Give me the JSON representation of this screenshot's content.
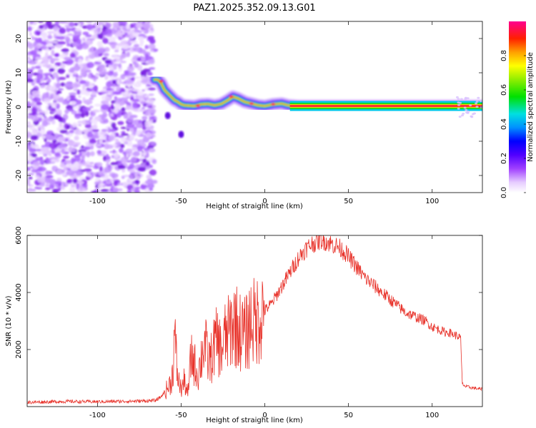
{
  "title": "PAZ1.2025.352.09.13.G01",
  "chart_data": [
    {
      "type": "heatmap",
      "name": "spectrogram",
      "xlabel": "Height of straight line (km)",
      "ylabel": "Frequency (Hz)",
      "xlim": [
        -142,
        130
      ],
      "ylim": [
        -25,
        25
      ],
      "xticks": [
        -100,
        -50,
        0,
        50,
        100
      ],
      "yticks": [
        -20,
        -10,
        0,
        10,
        20
      ],
      "noise_region": {
        "x_start": -142,
        "x_end": -66,
        "description_level": "low"
      },
      "signal_track": [
        [
          -66,
          8
        ],
        [
          -64,
          8
        ],
        [
          -62,
          7
        ],
        [
          -60,
          5
        ],
        [
          -58,
          4
        ],
        [
          -56,
          3
        ],
        [
          -54,
          2
        ],
        [
          -52,
          1.5
        ],
        [
          -50,
          0.8
        ],
        [
          -48,
          0.5
        ],
        [
          -45,
          0.4
        ],
        [
          -42,
          0.3
        ],
        [
          -38,
          0.8
        ],
        [
          -34,
          0.9
        ],
        [
          -30,
          0.5
        ],
        [
          -26,
          0.9
        ],
        [
          -22,
          2
        ],
        [
          -19,
          3
        ],
        [
          -16,
          2.5
        ],
        [
          -12,
          1.5
        ],
        [
          -8,
          1
        ],
        [
          -4,
          0.5
        ],
        [
          0,
          0.3
        ],
        [
          5,
          0.8
        ],
        [
          10,
          1
        ],
        [
          14,
          0.5
        ],
        [
          20,
          0.3
        ],
        [
          40,
          0.3
        ],
        [
          60,
          0.3
        ],
        [
          80,
          0.3
        ],
        [
          100,
          0.3
        ],
        [
          120,
          0.3
        ],
        [
          130,
          0.3
        ]
      ],
      "extra_blobs": [
        [
          -50,
          -8
        ],
        [
          -58,
          -2.5
        ]
      ],
      "colorbar": {
        "label": "Normalized spectral amplitude",
        "range": [
          0,
          1
        ],
        "ticks": [
          "0.0",
          "0.2",
          "0.4",
          "0.6",
          "0.8"
        ]
      }
    },
    {
      "type": "line",
      "name": "snr",
      "xlabel": "Height of straight line (km)",
      "ylabel": "SNR (10 * v/v)",
      "xlim": [
        -142,
        130
      ],
      "ylim": [
        0,
        6000
      ],
      "xticks": [
        -100,
        -50,
        0,
        50,
        100
      ],
      "yticks": [
        2000,
        4000,
        6000
      ],
      "color": "#e8322a",
      "series": [
        {
          "name": "SNR",
          "x": [
            -142,
            -120,
            -100,
            -80,
            -70,
            -65,
            -62,
            -60,
            -58,
            -56,
            -55,
            -54,
            -52,
            -50,
            -48,
            -46,
            -44,
            -42,
            -40,
            -38,
            -36,
            -34,
            -32,
            -30,
            -28,
            -26,
            -24,
            -22,
            -20,
            -18,
            -16,
            -14,
            -12,
            -10,
            -8,
            -6,
            -4,
            -2,
            0,
            2,
            4,
            6,
            8,
            10,
            12,
            14,
            16,
            18,
            20,
            22,
            24,
            26,
            28,
            30,
            32,
            34,
            36,
            38,
            40,
            42,
            44,
            46,
            48,
            50,
            52,
            54,
            56,
            58,
            60,
            62,
            64,
            66,
            68,
            70,
            72,
            74,
            76,
            78,
            80,
            82,
            84,
            86,
            88,
            90,
            92,
            94,
            96,
            98,
            100,
            102,
            104,
            106,
            108,
            110,
            112,
            114,
            116,
            117,
            118,
            120,
            125,
            130
          ],
          "y": [
            150,
            180,
            170,
            190,
            200,
            220,
            350,
            500,
            650,
            900,
            1200,
            2500,
            1000,
            600,
            900,
            400,
            1800,
            1500,
            1100,
            1700,
            2300,
            1600,
            1700,
            2200,
            2300,
            1900,
            2400,
            2500,
            2800,
            3000,
            2700,
            2600,
            2500,
            2700,
            3100,
            2900,
            3100,
            3300,
            3350,
            3500,
            3600,
            3800,
            4000,
            4200,
            4400,
            4600,
            4800,
            5000,
            5200,
            5350,
            5500,
            5600,
            5700,
            5750,
            5800,
            5850,
            5800,
            5750,
            5700,
            5650,
            5600,
            5500,
            5400,
            5250,
            5100,
            4950,
            4800,
            4650,
            4500,
            4400,
            4300,
            4200,
            4100,
            4000,
            3900,
            3800,
            3700,
            3600,
            3500,
            3400,
            3300,
            3250,
            3200,
            3150,
            3100,
            3050,
            3000,
            2900,
            2800,
            2750,
            2700,
            2650,
            2600,
            2600,
            2550,
            2500,
            2450,
            2400,
            800,
            700,
            650,
            600
          ]
        }
      ]
    }
  ]
}
